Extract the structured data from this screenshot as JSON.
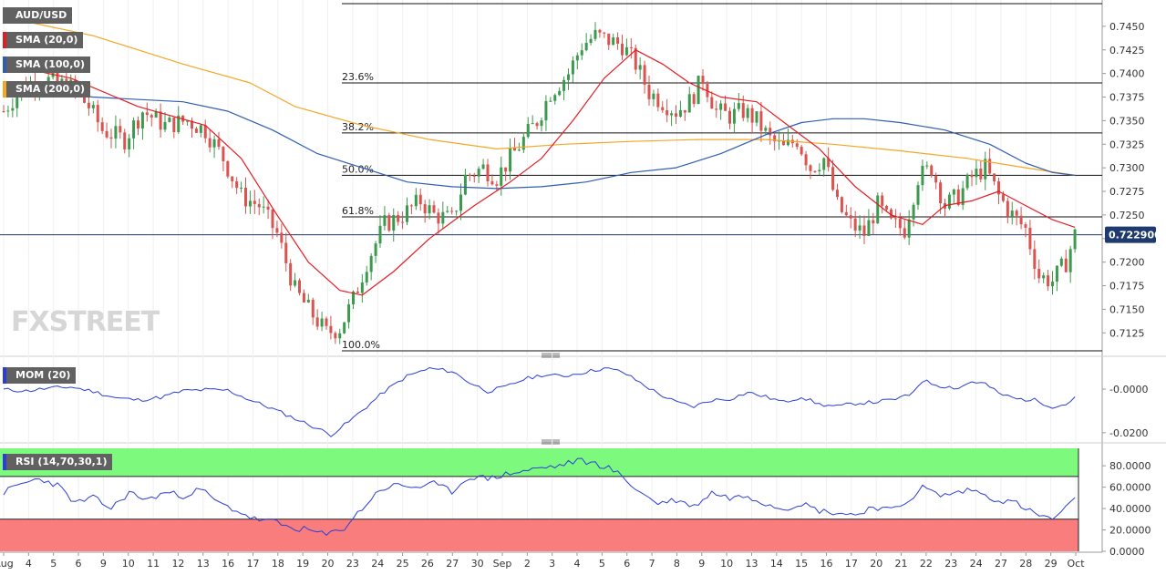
{
  "symbol": "AUD/USD",
  "indicators": {
    "sma20": {
      "label": "SMA (20,0)",
      "color": "#e51c23"
    },
    "sma100": {
      "label": "SMA (100,0)",
      "color": "#2e5db3"
    },
    "sma200": {
      "label": "SMA (200,0)",
      "color": "#f5a623"
    },
    "mom": {
      "label": "MOM (20)",
      "color": "#2b3fd6"
    },
    "rsi": {
      "label": "RSI (14,70,30,1)",
      "color": "#2b3fd6"
    }
  },
  "watermark": "FXSTREET",
  "current_price": "0.722900",
  "colors": {
    "bull": "#3c9a4e",
    "bear": "#d9534f",
    "overbought": "#7dfa7d",
    "oversold": "#fa7d7d"
  },
  "chart_data": [
    {
      "type": "candlestick",
      "title": "AUD/USD",
      "x_tick_labels": [
        "Aug",
        "4",
        "5",
        "6",
        "9",
        "10",
        "11",
        "12",
        "13",
        "16",
        "17",
        "18",
        "19",
        "20",
        "23",
        "24",
        "25",
        "26",
        "27",
        "30",
        "Sep",
        "2",
        "3",
        "4",
        "5",
        "6",
        "7",
        "8",
        "9",
        "10",
        "13",
        "14",
        "15",
        "16",
        "17",
        "20",
        "21",
        "22",
        "23",
        "24",
        "27",
        "28",
        "29",
        "Oct"
      ],
      "y_ticks": [
        "0.7450",
        "0.7425",
        "0.7400",
        "0.7375",
        "0.7350",
        "0.7325",
        "0.7300",
        "0.7275",
        "0.7250",
        "0.7225",
        "0.7200",
        "0.7175",
        "0.7150",
        "0.7125"
      ],
      "ylim": [
        0.7105,
        0.7475
      ],
      "fibonacci": [
        {
          "label": "",
          "value": 0.7474
        },
        {
          "label": "23.6%",
          "value": 0.739
        },
        {
          "label": "38.2%",
          "value": 0.7337
        },
        {
          "label": "50.0%",
          "value": 0.7292
        },
        {
          "label": "61.8%",
          "value": 0.7248
        },
        {
          "label": "100.0%",
          "value": 0.7106
        }
      ],
      "current_price": 0.7229,
      "close_path": [
        [
          0,
          0.736
        ],
        [
          4,
          0.7385
        ],
        [
          8,
          0.7395
        ],
        [
          12,
          0.739
        ],
        [
          15,
          0.7385
        ],
        [
          19,
          0.7365
        ],
        [
          22,
          0.734
        ],
        [
          27,
          0.733
        ],
        [
          31,
          0.736
        ],
        [
          36,
          0.7345
        ],
        [
          41,
          0.735
        ],
        [
          45,
          0.734
        ],
        [
          49,
          0.731
        ],
        [
          53,
          0.727
        ],
        [
          57,
          0.726
        ],
        [
          61,
          0.723
        ],
        [
          65,
          0.717
        ],
        [
          68,
          0.715
        ],
        [
          72,
          0.7125
        ],
        [
          75,
          0.713
        ],
        [
          78,
          0.716
        ],
        [
          81,
          0.72
        ],
        [
          85,
          0.724
        ],
        [
          89,
          0.725
        ],
        [
          93,
          0.7265
        ],
        [
          96,
          0.725
        ],
        [
          100,
          0.7245
        ],
        [
          103,
          0.729
        ],
        [
          107,
          0.73
        ],
        [
          110,
          0.729
        ],
        [
          113,
          0.731
        ],
        [
          116,
          0.733
        ],
        [
          119,
          0.735
        ],
        [
          122,
          0.738
        ],
        [
          126,
          0.74
        ],
        [
          129,
          0.743
        ],
        [
          132,
          0.744
        ],
        [
          135,
          0.7435
        ],
        [
          138,
          0.743
        ],
        [
          141,
          0.741
        ],
        [
          144,
          0.738
        ],
        [
          147,
          0.737
        ],
        [
          150,
          0.736
        ],
        [
          153,
          0.737
        ],
        [
          156,
          0.7395
        ],
        [
          159,
          0.736
        ],
        [
          162,
          0.7355
        ],
        [
          165,
          0.736
        ],
        [
          168,
          0.735
        ],
        [
          171,
          0.733
        ],
        [
          174,
          0.732
        ],
        [
          177,
          0.733
        ],
        [
          180,
          0.73
        ],
        [
          183,
          0.731
        ],
        [
          186,
          0.726
        ],
        [
          189,
          0.724
        ],
        [
          192,
          0.723
        ],
        [
          195,
          0.726
        ],
        [
          198,
          0.724
        ],
        [
          201,
          0.7235
        ],
        [
          204,
          0.729
        ],
        [
          207,
          0.73
        ],
        [
          210,
          0.726
        ],
        [
          213,
          0.727
        ],
        [
          216,
          0.729
        ],
        [
          219,
          0.73
        ],
        [
          222,
          0.727
        ],
        [
          225,
          0.725
        ],
        [
          228,
          0.7235
        ],
        [
          231,
          0.7185
        ],
        [
          234,
          0.718
        ],
        [
          237,
          0.72
        ],
        [
          239,
          0.7229
        ]
      ],
      "sma20_path": [
        [
          0,
          0.741
        ],
        [
          15,
          0.7395
        ],
        [
          30,
          0.7365
        ],
        [
          45,
          0.7345
        ],
        [
          53,
          0.731
        ],
        [
          61,
          0.725
        ],
        [
          68,
          0.72
        ],
        [
          75,
          0.717
        ],
        [
          80,
          0.7165
        ],
        [
          87,
          0.719
        ],
        [
          95,
          0.7225
        ],
        [
          105,
          0.726
        ],
        [
          113,
          0.7285
        ],
        [
          120,
          0.731
        ],
        [
          127,
          0.735
        ],
        [
          134,
          0.7395
        ],
        [
          141,
          0.7425
        ],
        [
          147,
          0.741
        ],
        [
          153,
          0.739
        ],
        [
          160,
          0.7375
        ],
        [
          168,
          0.737
        ],
        [
          175,
          0.7345
        ],
        [
          182,
          0.732
        ],
        [
          190,
          0.728
        ],
        [
          198,
          0.725
        ],
        [
          205,
          0.724
        ],
        [
          210,
          0.726
        ],
        [
          216,
          0.7265
        ],
        [
          222,
          0.7275
        ],
        [
          228,
          0.726
        ],
        [
          234,
          0.7245
        ],
        [
          239,
          0.7237
        ]
      ],
      "sma100_path": [
        [
          0,
          0.7385
        ],
        [
          20,
          0.7375
        ],
        [
          40,
          0.737
        ],
        [
          50,
          0.736
        ],
        [
          60,
          0.734
        ],
        [
          70,
          0.7315
        ],
        [
          80,
          0.73
        ],
        [
          90,
          0.7285
        ],
        [
          100,
          0.728
        ],
        [
          110,
          0.7278
        ],
        [
          120,
          0.728
        ],
        [
          130,
          0.7285
        ],
        [
          140,
          0.7295
        ],
        [
          150,
          0.73
        ],
        [
          160,
          0.7315
        ],
        [
          170,
          0.7335
        ],
        [
          178,
          0.7348
        ],
        [
          185,
          0.7352
        ],
        [
          192,
          0.7352
        ],
        [
          200,
          0.7348
        ],
        [
          210,
          0.734
        ],
        [
          220,
          0.7325
        ],
        [
          228,
          0.7305
        ],
        [
          234,
          0.7295
        ],
        [
          239,
          0.7292
        ]
      ],
      "sma200_path": [
        [
          0,
          0.746
        ],
        [
          20,
          0.744
        ],
        [
          40,
          0.741
        ],
        [
          55,
          0.739
        ],
        [
          65,
          0.7365
        ],
        [
          80,
          0.7345
        ],
        [
          95,
          0.733
        ],
        [
          110,
          0.732
        ],
        [
          125,
          0.7325
        ],
        [
          140,
          0.7328
        ],
        [
          155,
          0.733
        ],
        [
          170,
          0.733
        ],
        [
          185,
          0.7325
        ],
        [
          200,
          0.7318
        ],
        [
          215,
          0.731
        ],
        [
          228,
          0.73
        ],
        [
          239,
          0.7292
        ]
      ]
    },
    {
      "type": "line",
      "title": "MOM (20)",
      "y_ticks": [
        "-0.0000",
        "-0.0200"
      ],
      "ylim": [
        -0.023,
        0.013
      ],
      "values": [
        [
          0,
          -0.0002
        ],
        [
          5,
          -0.0008
        ],
        [
          10,
          0.0004
        ],
        [
          15,
          0.001
        ],
        [
          20,
          -0.001
        ],
        [
          25,
          -0.004
        ],
        [
          30,
          -0.005
        ],
        [
          35,
          -0.0038
        ],
        [
          40,
          -0.0008
        ],
        [
          45,
          -0.0003
        ],
        [
          50,
          -0.0005
        ],
        [
          55,
          -0.005
        ],
        [
          60,
          -0.009
        ],
        [
          65,
          -0.0135
        ],
        [
          70,
          -0.018
        ],
        [
          73,
          -0.021
        ],
        [
          77,
          -0.015
        ],
        [
          81,
          -0.008
        ],
        [
          85,
          -0.001
        ],
        [
          90,
          0.006
        ],
        [
          95,
          0.0095
        ],
        [
          100,
          0.0082
        ],
        [
          104,
          0.003
        ],
        [
          108,
          -0.001
        ],
        [
          112,
          0.001
        ],
        [
          116,
          0.0045
        ],
        [
          120,
          0.0065
        ],
        [
          125,
          0.006
        ],
        [
          130,
          0.008
        ],
        [
          134,
          0.0096
        ],
        [
          138,
          0.008
        ],
        [
          142,
          0.003
        ],
        [
          146,
          -0.002
        ],
        [
          150,
          -0.006
        ],
        [
          154,
          -0.008
        ],
        [
          158,
          -0.005
        ],
        [
          162,
          -0.0045
        ],
        [
          166,
          -0.0015
        ],
        [
          170,
          -0.0035
        ],
        [
          174,
          -0.006
        ],
        [
          178,
          -0.0035
        ],
        [
          182,
          -0.007
        ],
        [
          186,
          -0.008
        ],
        [
          190,
          -0.0065
        ],
        [
          194,
          -0.006
        ],
        [
          198,
          -0.005
        ],
        [
          202,
          -0.003
        ],
        [
          205,
          0.004
        ],
        [
          209,
          0.0015
        ],
        [
          213,
          0.0005
        ],
        [
          216,
          0.0035
        ],
        [
          219,
          0.0025
        ],
        [
          222,
          -0.002
        ],
        [
          226,
          -0.0045
        ],
        [
          230,
          -0.005
        ],
        [
          234,
          -0.008
        ],
        [
          237,
          -0.007
        ],
        [
          239,
          -0.0035
        ]
      ]
    },
    {
      "type": "line",
      "title": "RSI (14,70,30,1)",
      "y_ticks": [
        "80.0000",
        "60.0000",
        "40.0000",
        "20.0000",
        "0.0000"
      ],
      "ylim": [
        0,
        98
      ],
      "levels": [
        70,
        30
      ],
      "values": [
        [
          0,
          55
        ],
        [
          4,
          63
        ],
        [
          8,
          68
        ],
        [
          12,
          62
        ],
        [
          16,
          45
        ],
        [
          20,
          50
        ],
        [
          24,
          40
        ],
        [
          28,
          55
        ],
        [
          32,
          48
        ],
        [
          36,
          55
        ],
        [
          40,
          52
        ],
        [
          44,
          58
        ],
        [
          48,
          45
        ],
        [
          52,
          38
        ],
        [
          56,
          30
        ],
        [
          60,
          28
        ],
        [
          64,
          22
        ],
        [
          68,
          20
        ],
        [
          72,
          15
        ],
        [
          76,
          22
        ],
        [
          80,
          40
        ],
        [
          84,
          58
        ],
        [
          88,
          62
        ],
        [
          92,
          60
        ],
        [
          96,
          63
        ],
        [
          100,
          56
        ],
        [
          104,
          70
        ],
        [
          108,
          68
        ],
        [
          112,
          72
        ],
        [
          116,
          75
        ],
        [
          120,
          78
        ],
        [
          124,
          80
        ],
        [
          128,
          85
        ],
        [
          132,
          82
        ],
        [
          135,
          78
        ],
        [
          138,
          70
        ],
        [
          142,
          55
        ],
        [
          146,
          45
        ],
        [
          150,
          48
        ],
        [
          154,
          42
        ],
        [
          158,
          55
        ],
        [
          162,
          50
        ],
        [
          166,
          52
        ],
        [
          170,
          45
        ],
        [
          174,
          40
        ],
        [
          178,
          45
        ],
        [
          182,
          38
        ],
        [
          186,
          36
        ],
        [
          190,
          34
        ],
        [
          194,
          42
        ],
        [
          198,
          38
        ],
        [
          202,
          48
        ],
        [
          205,
          60
        ],
        [
          209,
          52
        ],
        [
          213,
          55
        ],
        [
          216,
          58
        ],
        [
          219,
          52
        ],
        [
          222,
          48
        ],
        [
          226,
          45
        ],
        [
          230,
          35
        ],
        [
          234,
          30
        ],
        [
          237,
          40
        ],
        [
          239,
          48
        ]
      ]
    }
  ]
}
